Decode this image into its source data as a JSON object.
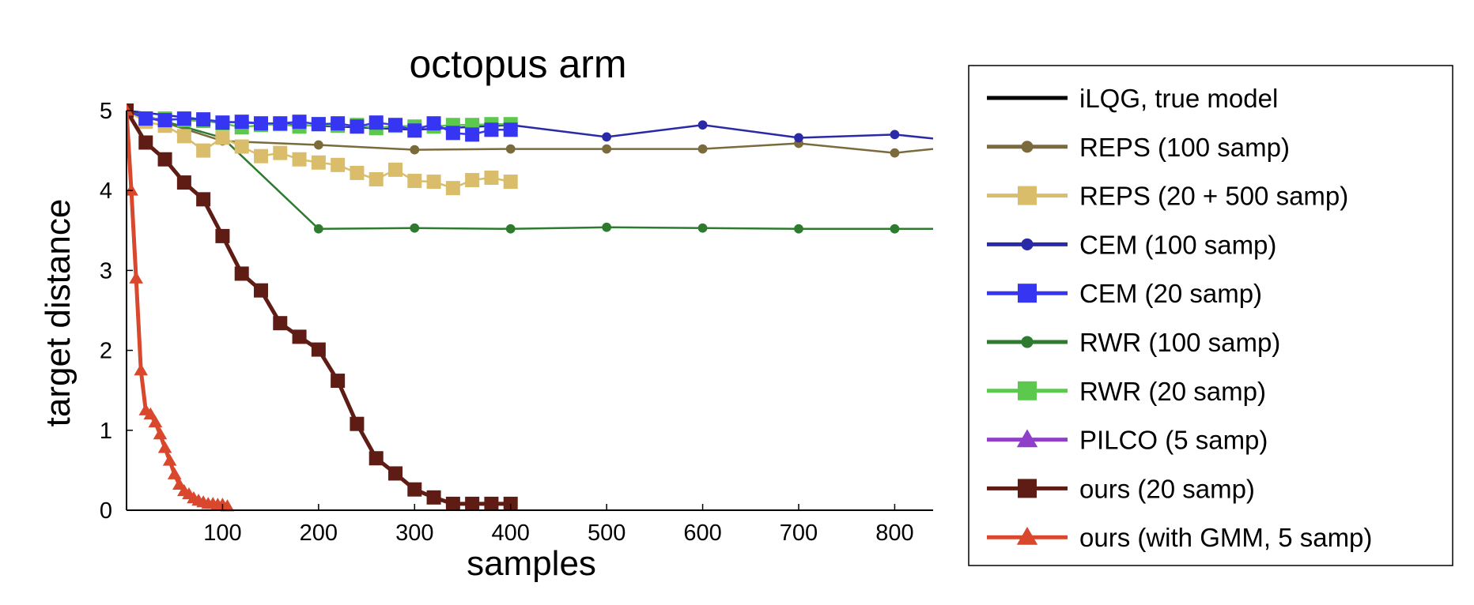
{
  "chart_data": {
    "type": "line",
    "title": "octopus arm",
    "xlabel": "samples",
    "ylabel": "target distance",
    "xlim": [
      0,
      840
    ],
    "ylim": [
      0,
      5
    ],
    "xticks": [
      100,
      200,
      300,
      400,
      500,
      600,
      700,
      800
    ],
    "yticks": [
      0,
      1,
      2,
      3,
      4,
      5
    ],
    "grid": false,
    "legend_position": "right-outside",
    "series": [
      {
        "name": "iLQG, true model",
        "color": "#000000",
        "marker": "none",
        "x": [],
        "y": []
      },
      {
        "name": "REPS (100 samp)",
        "color": "#7a6a3c",
        "marker": "circle",
        "x": [
          0,
          100,
          200,
          300,
          400,
          500,
          600,
          700,
          800,
          840
        ],
        "y": [
          5.0,
          4.62,
          4.57,
          4.51,
          4.52,
          4.52,
          4.52,
          4.59,
          4.47,
          4.52
        ]
      },
      {
        "name": "REPS (20 + 500 samp)",
        "color": "#d9bd6a",
        "marker": "square",
        "x": [
          0,
          20,
          40,
          60,
          80,
          100,
          120,
          140,
          160,
          180,
          200,
          220,
          240,
          260,
          280,
          300,
          320,
          340,
          360,
          380,
          400
        ],
        "y": [
          5.0,
          4.86,
          4.81,
          4.68,
          4.5,
          4.66,
          4.55,
          4.43,
          4.47,
          4.39,
          4.35,
          4.32,
          4.22,
          4.14,
          4.26,
          4.12,
          4.11,
          4.03,
          4.13,
          4.16,
          4.11
        ]
      },
      {
        "name": "CEM (100 samp)",
        "color": "#2a2aa8",
        "marker": "circle",
        "x": [
          0,
          100,
          200,
          300,
          400,
          500,
          600,
          700,
          800,
          840
        ],
        "y": [
          5.0,
          4.86,
          4.81,
          4.76,
          4.82,
          4.67,
          4.82,
          4.66,
          4.7,
          4.65
        ]
      },
      {
        "name": "CEM (20 samp)",
        "color": "#3535f2",
        "marker": "square",
        "x": [
          0,
          20,
          40,
          60,
          80,
          100,
          120,
          140,
          160,
          180,
          200,
          220,
          240,
          260,
          280,
          300,
          320,
          340,
          360,
          380,
          400
        ],
        "y": [
          5.0,
          4.9,
          4.88,
          4.9,
          4.89,
          4.85,
          4.86,
          4.84,
          4.84,
          4.86,
          4.83,
          4.84,
          4.8,
          4.85,
          4.82,
          4.75,
          4.84,
          4.72,
          4.7,
          4.76,
          4.76
        ]
      },
      {
        "name": "RWR (100 samp)",
        "color": "#2e7a2e",
        "marker": "circle",
        "x": [
          0,
          100,
          200,
          300,
          400,
          500,
          600,
          700,
          800,
          840
        ],
        "y": [
          5.0,
          4.66,
          3.52,
          3.53,
          3.52,
          3.54,
          3.53,
          3.52,
          3.52,
          3.52
        ]
      },
      {
        "name": "RWR (20 samp)",
        "color": "#5cc84e",
        "marker": "square",
        "x": [
          0,
          20,
          40,
          60,
          80,
          100,
          120,
          140,
          160,
          180,
          200,
          220,
          240,
          260,
          280,
          300,
          320,
          340,
          360,
          380,
          400
        ],
        "y": [
          5.0,
          4.9,
          4.9,
          4.88,
          4.87,
          4.84,
          4.79,
          4.82,
          4.83,
          4.8,
          4.83,
          4.81,
          4.82,
          4.78,
          4.81,
          4.8,
          4.8,
          4.82,
          4.82,
          4.83,
          4.83
        ]
      },
      {
        "name": "PILCO (5 samp)",
        "color": "#9040c8",
        "marker": "triangle",
        "x": [],
        "y": []
      },
      {
        "name": "ours (20 samp)",
        "color": "#5e1c14",
        "marker": "square",
        "x": [
          0,
          20,
          40,
          60,
          80,
          100,
          120,
          140,
          160,
          180,
          200,
          220,
          240,
          260,
          280,
          300,
          320,
          340,
          360,
          380,
          400
        ],
        "y": [
          5.0,
          4.6,
          4.39,
          4.1,
          3.89,
          3.43,
          2.96,
          2.75,
          2.34,
          2.17,
          2.01,
          1.62,
          1.08,
          0.65,
          0.46,
          0.26,
          0.16,
          0.08,
          0.08,
          0.08,
          0.08
        ]
      },
      {
        "name": "ours (with GMM, 5 samp)",
        "color": "#d9472c",
        "marker": "triangle",
        "x": [
          0,
          5,
          10,
          15,
          20,
          25,
          30,
          35,
          40,
          45,
          50,
          55,
          60,
          65,
          70,
          75,
          80,
          85,
          90,
          95,
          100,
          105
        ],
        "y": [
          5.0,
          4.0,
          2.9,
          1.75,
          1.25,
          1.2,
          1.1,
          0.95,
          0.78,
          0.62,
          0.45,
          0.32,
          0.24,
          0.2,
          0.15,
          0.12,
          0.1,
          0.08,
          0.08,
          0.07,
          0.07,
          0.05
        ]
      }
    ]
  }
}
